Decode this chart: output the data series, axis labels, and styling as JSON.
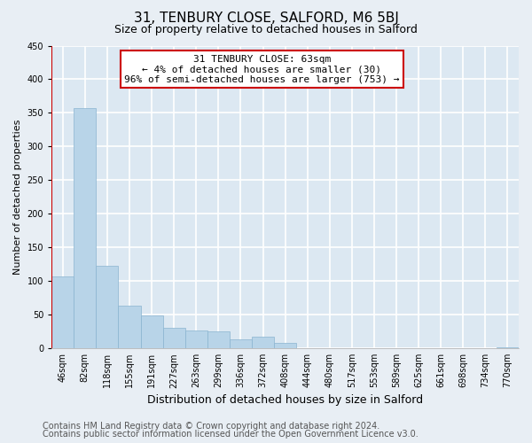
{
  "title": "31, TENBURY CLOSE, SALFORD, M6 5BJ",
  "subtitle": "Size of property relative to detached houses in Salford",
  "xlabel": "Distribution of detached houses by size in Salford",
  "ylabel": "Number of detached properties",
  "bar_labels": [
    "46sqm",
    "82sqm",
    "118sqm",
    "155sqm",
    "191sqm",
    "227sqm",
    "263sqm",
    "299sqm",
    "336sqm",
    "372sqm",
    "408sqm",
    "444sqm",
    "480sqm",
    "517sqm",
    "553sqm",
    "589sqm",
    "625sqm",
    "661sqm",
    "698sqm",
    "734sqm",
    "770sqm"
  ],
  "bar_values": [
    107,
    357,
    123,
    63,
    49,
    30,
    26,
    25,
    14,
    18,
    8,
    0,
    0,
    0,
    0,
    0,
    0,
    0,
    0,
    0,
    2
  ],
  "bar_color": "#b8d4e8",
  "marker_line_color": "#cc0000",
  "annotation_text": "31 TENBURY CLOSE: 63sqm\n← 4% of detached houses are smaller (30)\n96% of semi-detached houses are larger (753) →",
  "annotation_box_color": "#ffffff",
  "annotation_box_edge": "#cc0000",
  "ylim": [
    0,
    450
  ],
  "yticks": [
    0,
    50,
    100,
    150,
    200,
    250,
    300,
    350,
    400,
    450
  ],
  "footer_line1": "Contains HM Land Registry data © Crown copyright and database right 2024.",
  "footer_line2": "Contains public sector information licensed under the Open Government Licence v3.0.",
  "background_color": "#e8eef4",
  "plot_bg_color": "#dce8f2",
  "grid_color": "#ffffff",
  "title_fontsize": 11,
  "subtitle_fontsize": 9,
  "xlabel_fontsize": 9,
  "ylabel_fontsize": 8,
  "tick_fontsize": 7,
  "footer_fontsize": 7
}
